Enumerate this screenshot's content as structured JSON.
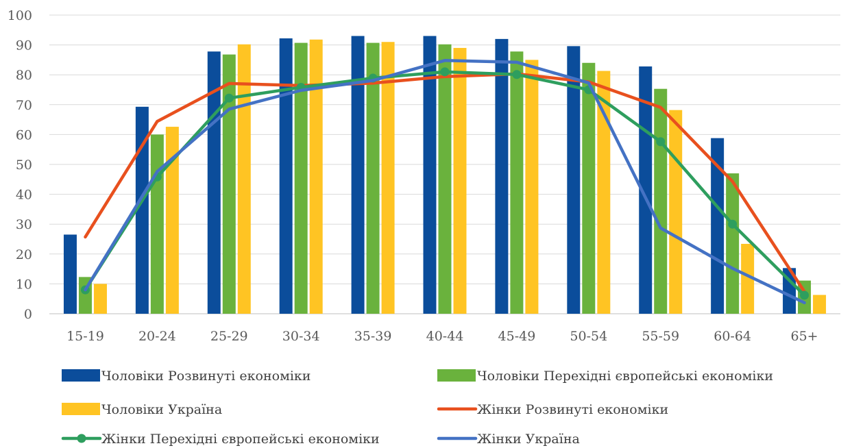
{
  "chart_data": {
    "type": "bar",
    "categories": [
      "15-19",
      "20-24",
      "25-29",
      "30-34",
      "35-39",
      "40-44",
      "45-49",
      "50-54",
      "55-59",
      "60-64",
      "65+"
    ],
    "ylim": [
      0,
      100
    ],
    "yticks": [
      0,
      10,
      20,
      30,
      40,
      50,
      60,
      70,
      80,
      90,
      100
    ],
    "grid": true,
    "legend_position": "bottom",
    "bar_series": [
      {
        "name": "Чоловіки Розвинуті економіки",
        "color": "#0B4D9B",
        "values": [
          26.5,
          69.3,
          87.8,
          92.2,
          93.0,
          93.0,
          92.0,
          89.6,
          82.8,
          58.8,
          15.3
        ]
      },
      {
        "name": "Чоловіки Перехідні європейські економіки",
        "color": "#6AB23D",
        "values": [
          12.3,
          60.0,
          86.8,
          90.7,
          90.7,
          90.2,
          87.8,
          84.0,
          75.3,
          47.0,
          11.1
        ]
      },
      {
        "name": "Чоловіки Україна",
        "color": "#FFC423",
        "values": [
          10.0,
          62.6,
          90.2,
          91.8,
          91.0,
          89.0,
          85.0,
          81.3,
          68.2,
          23.4,
          6.3
        ]
      }
    ],
    "line_series": [
      {
        "name": "Жінки Розвинуті економіки",
        "color": "#E8501E",
        "marker": false,
        "values": [
          25.7,
          64.4,
          77.1,
          76.4,
          77.2,
          79.4,
          80.3,
          77.6,
          69.1,
          44.3,
          7.4
        ]
      },
      {
        "name": "Жінки Перехідні європейські економіки",
        "color": "#2E9E5E",
        "marker": true,
        "values": [
          8.0,
          45.8,
          72.2,
          75.8,
          78.9,
          81.0,
          80.1,
          75.0,
          57.6,
          30.0,
          6.2
        ]
      },
      {
        "name": "Жінки Україна",
        "color": "#4472C4",
        "marker": false,
        "values": [
          8.0,
          47.6,
          68.5,
          74.8,
          78.1,
          84.8,
          84.2,
          77.3,
          28.7,
          15.2,
          3.7
        ]
      }
    ]
  }
}
